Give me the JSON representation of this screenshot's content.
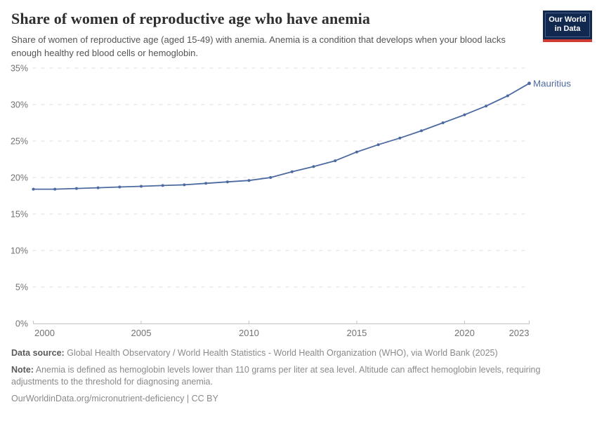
{
  "header": {
    "title": "Share of women of reproductive age who have anemia",
    "subtitle": "Share of women of reproductive age (aged 15-49) with anemia. Anemia is a condition that develops when your blood lacks enough healthy red blood cells or hemoglobin.",
    "logo": {
      "line1": "Our World",
      "line2": "in Data"
    }
  },
  "chart_data": {
    "type": "line",
    "title": "Share of women of reproductive age who have anemia",
    "unit": "%",
    "xlabel": "",
    "ylabel": "",
    "xlim": [
      2000,
      2023
    ],
    "ylim": [
      0,
      35
    ],
    "grid": "horizontal-dashed",
    "legend": "end-of-line-label",
    "x_ticks": [
      2000,
      2005,
      2010,
      2015,
      2020,
      2023
    ],
    "y_ticks": [
      0,
      5,
      10,
      15,
      20,
      25,
      30,
      35
    ],
    "y_tick_format": "{v}%",
    "x": [
      2000,
      2001,
      2002,
      2003,
      2004,
      2005,
      2006,
      2007,
      2008,
      2009,
      2010,
      2011,
      2012,
      2013,
      2014,
      2015,
      2016,
      2017,
      2018,
      2019,
      2020,
      2021,
      2022,
      2023
    ],
    "series": [
      {
        "name": "Mauritius",
        "color": "#4c6a9f",
        "values": [
          18.4,
          18.4,
          18.5,
          18.6,
          18.7,
          18.8,
          18.9,
          19.0,
          19.2,
          19.4,
          19.6,
          20.0,
          20.8,
          21.5,
          22.3,
          23.5,
          24.5,
          25.4,
          26.4,
          27.5,
          28.6,
          29.8,
          31.2,
          32.9
        ]
      }
    ]
  },
  "footer": {
    "datasource_label": "Data source:",
    "datasource_text": "Global Health Observatory / World Health Statistics - World Health Organization (WHO), via World Bank (2025)",
    "note_label": "Note:",
    "note_text": "Anemia is defined as hemoglobin levels lower than 110 grams per liter at sea level. Altitude can affect hemoglobin levels, requiring adjustments to the threshold for diagnosing anemia.",
    "license_line": "OurWorldinData.org/micronutrient-deficiency | CC BY"
  },
  "colors": {
    "line": "#4c6a9f",
    "grid": "#dedede",
    "axis": "#c2c2c2",
    "tick_text": "#737373",
    "logo_bg": "#12294f",
    "logo_stripe": "#d13c32"
  }
}
